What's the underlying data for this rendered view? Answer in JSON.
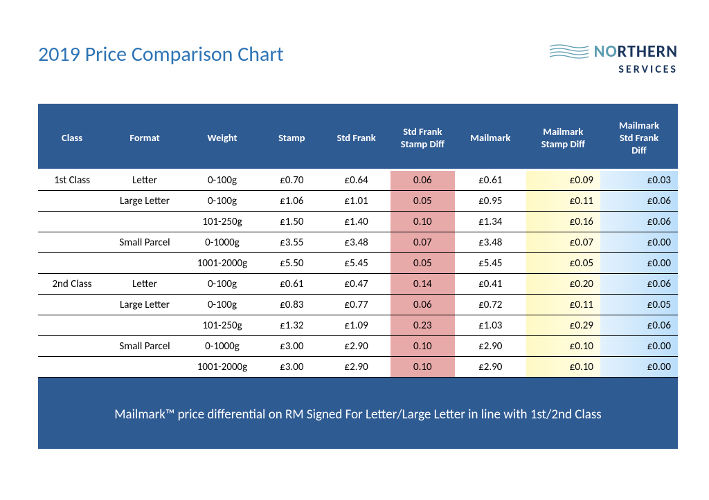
{
  "title": "2019 Price Comparison Chart",
  "logo": {
    "main_pre": "N",
    "main_o": "O",
    "main_rest": "RTHERN",
    "sub": "SERVICES"
  },
  "colors": {
    "title": "#2e74b5",
    "header_bg": "#2f5b93",
    "hl_red": "#e8a9a9",
    "hl_yellow_from": "#fff9c4",
    "hl_blue_to": "#bbdefb",
    "logo_dark": "#1b365d",
    "logo_accent": "#5a9bb0"
  },
  "columns": [
    "Class",
    "Format",
    "Weight",
    "Stamp",
    "Std Frank",
    "Std Frank Stamp Diff",
    "Mailmark",
    "Mailmark Stamp Diff",
    "Mailmark Std Frank Diff"
  ],
  "rows": [
    {
      "class": "1st Class",
      "format": "Letter",
      "weight": "0-100g",
      "stamp": "£0.70",
      "stdfrank": "£0.64",
      "diff1": "0.06",
      "mailmark": "£0.61",
      "diff2": "£0.09",
      "diff3": "£0.03"
    },
    {
      "class": "",
      "format": "Large Letter",
      "weight": "0-100g",
      "stamp": "£1.06",
      "stdfrank": "£1.01",
      "diff1": "0.05",
      "mailmark": "£0.95",
      "diff2": "£0.11",
      "diff3": "£0.06"
    },
    {
      "class": "",
      "format": "",
      "weight": "101-250g",
      "stamp": "£1.50",
      "stdfrank": "£1.40",
      "diff1": "0.10",
      "mailmark": "£1.34",
      "diff2": "£0.16",
      "diff3": "£0.06"
    },
    {
      "class": "",
      "format": "Small Parcel",
      "weight": "0-1000g",
      "stamp": "£3.55",
      "stdfrank": "£3.48",
      "diff1": "0.07",
      "mailmark": "£3.48",
      "diff2": "£0.07",
      "diff3": "£0.00"
    },
    {
      "class": "",
      "format": "",
      "weight": "1001-2000g",
      "stamp": "£5.50",
      "stdfrank": "£5.45",
      "diff1": "0.05",
      "mailmark": "£5.45",
      "diff2": "£0.05",
      "diff3": "£0.00"
    },
    {
      "class": "2nd Class",
      "format": "Letter",
      "weight": "0-100g",
      "stamp": "£0.61",
      "stdfrank": "£0.47",
      "diff1": "0.14",
      "mailmark": "£0.41",
      "diff2": "£0.20",
      "diff3": "£0.06"
    },
    {
      "class": "",
      "format": "Large Letter",
      "weight": "0-100g",
      "stamp": "£0.83",
      "stdfrank": "£0.77",
      "diff1": "0.06",
      "mailmark": "£0.72",
      "diff2": "£0.11",
      "diff3": "£0.05"
    },
    {
      "class": "",
      "format": "",
      "weight": "101-250g",
      "stamp": "£1.32",
      "stdfrank": "£1.09",
      "diff1": "0.23",
      "mailmark": "£1.03",
      "diff2": "£0.29",
      "diff3": "£0.06"
    },
    {
      "class": "",
      "format": "Small Parcel",
      "weight": "0-1000g",
      "stamp": "£3.00",
      "stdfrank": "£2.90",
      "diff1": "0.10",
      "mailmark": "£2.90",
      "diff2": "£0.10",
      "diff3": "£0.00"
    },
    {
      "class": "",
      "format": "",
      "weight": "1001-2000g",
      "stamp": "£3.00",
      "stdfrank": "£2.90",
      "diff1": "0.10",
      "mailmark": "£2.90",
      "diff2": "£0.10",
      "diff3": "£0.00"
    }
  ],
  "footer": "Mailmark™ price differential on RM Signed For Letter/Large Letter in line with 1st/2nd Class"
}
